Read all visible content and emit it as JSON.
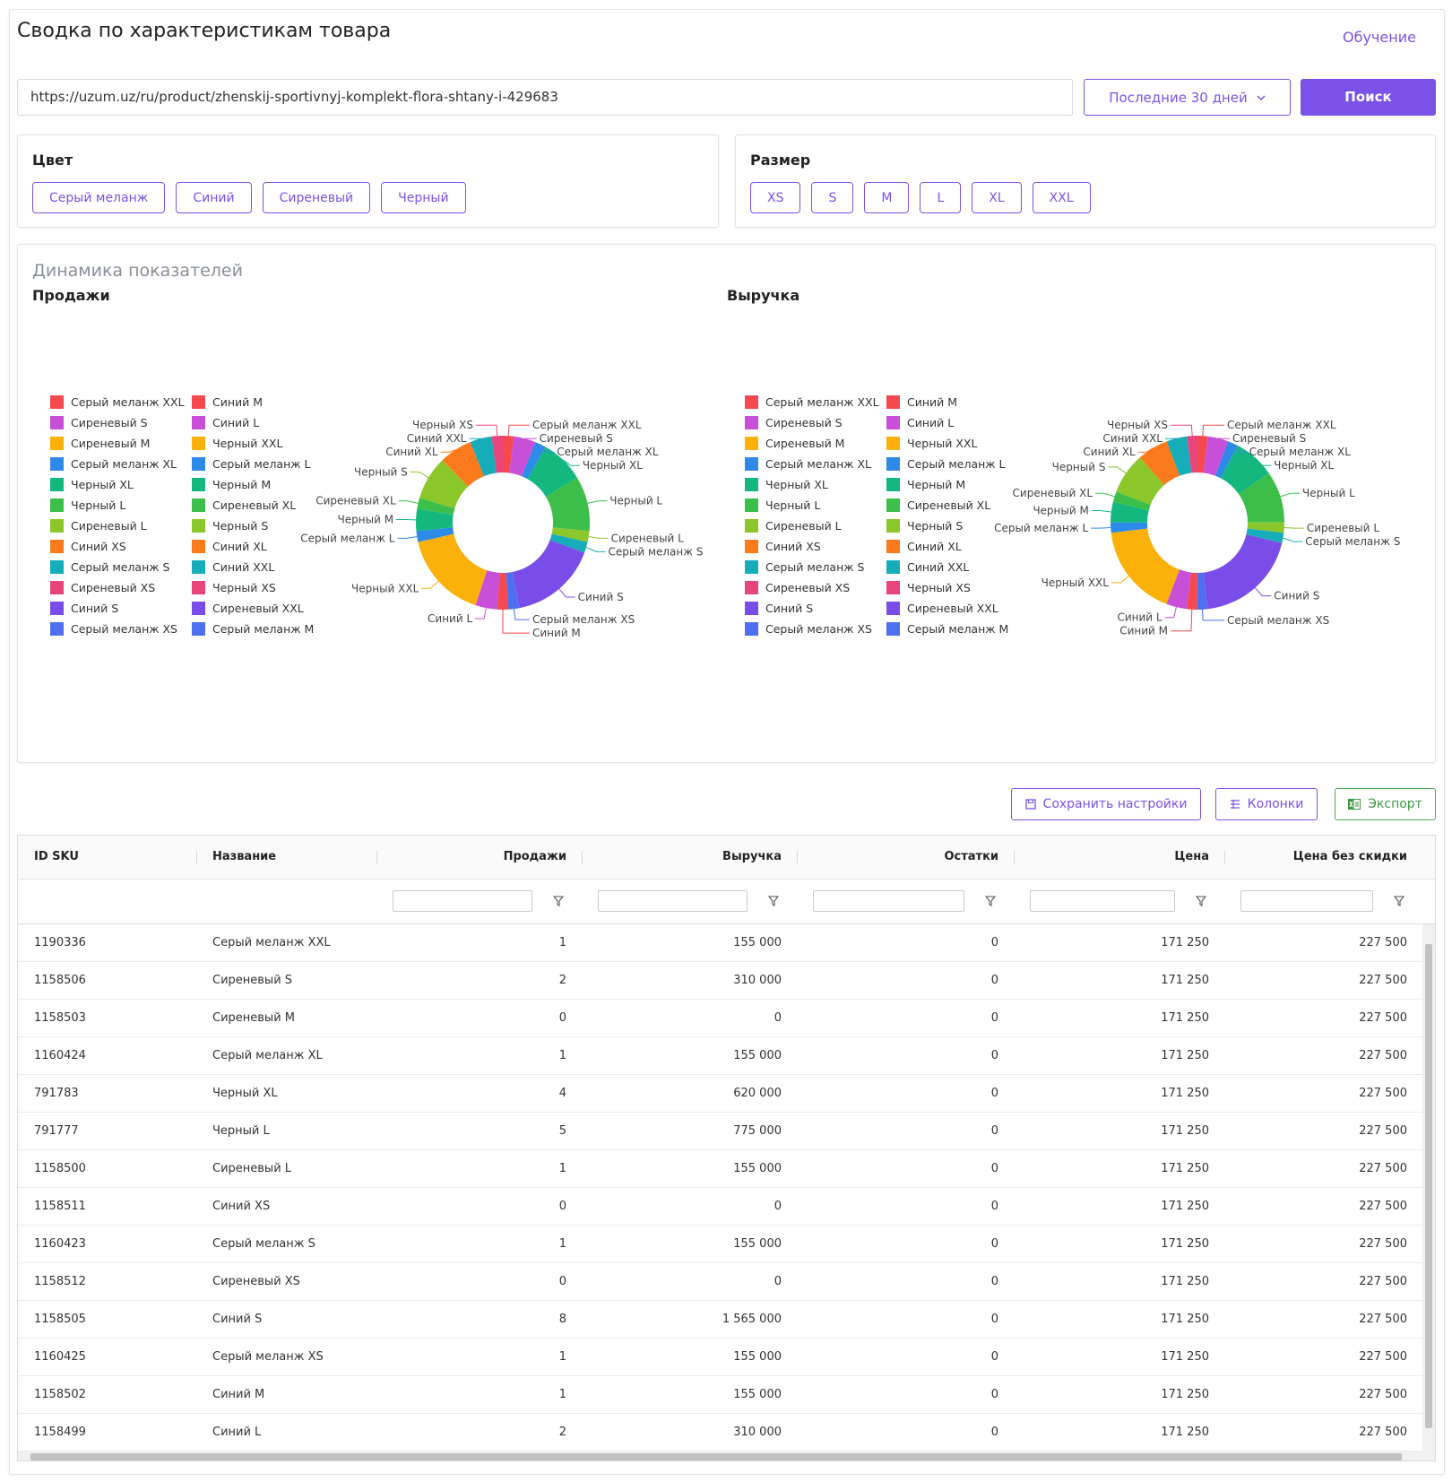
{
  "header": {
    "title": "Сводка по характеристикам товара",
    "help_link": "Обучение"
  },
  "search": {
    "url": "https://uzum.uz/ru/product/zhenskij-sportivnyj-komplekt-flora-shtany-i-429683",
    "period": "Последние 30 дней",
    "button": "Поиск"
  },
  "filters": [
    {
      "title": "Цвет",
      "options": [
        "Серый меланж",
        "Синий",
        "Сиреневый",
        "Черный"
      ]
    },
    {
      "title": "Размер",
      "options": [
        "XS",
        "S",
        "M",
        "L",
        "XL",
        "XXL"
      ]
    }
  ],
  "dashboard": {
    "title": "Динамика показателей"
  },
  "chart_data": [
    {
      "type": "donut",
      "title": "Продажи",
      "categories": [
        "Серый меланж XXL",
        "Сиреневый S",
        "Сиреневый M",
        "Серый меланж XL",
        "Черный XL",
        "Черный L",
        "Сиреневый L",
        "Синий XS",
        "Серый меланж S",
        "Сиреневый XS",
        "Синий S",
        "Серый меланж XS",
        "Синий M",
        "Синий L",
        "Черный XXL",
        "Серый меланж L",
        "Черный M",
        "Сиреневый XL",
        "Черный S",
        "Синий XL",
        "Синий XXL",
        "Черный XS",
        "Сиреневый XXL",
        "Серый меланж M"
      ],
      "values": [
        1,
        2,
        0,
        1,
        4,
        5,
        1,
        0,
        1,
        0,
        8,
        1,
        1,
        2,
        8,
        1,
        2,
        1,
        4,
        3,
        2,
        1,
        0,
        0
      ],
      "colors": [
        "#f5484f",
        "#c84fd8",
        "#fbb10a",
        "#2d8ae8",
        "#14b87e",
        "#3cbf4a",
        "#8bc72a",
        "#fb7a1c",
        "#17adb8",
        "#e8467a",
        "#7b4de8",
        "#4d6ff0"
      ]
    },
    {
      "type": "donut",
      "title": "Выручка",
      "categories": [
        "Серый меланж XXL",
        "Сиреневый S",
        "Сиреневый M",
        "Серый меланж XL",
        "Черный XL",
        "Черный L",
        "Сиреневый L",
        "Синий XS",
        "Серый меланж S",
        "Сиреневый XS",
        "Синий S",
        "Серый меланж XS",
        "Синий M",
        "Синий L",
        "Черный XXL",
        "Серый меланж L",
        "Черный M",
        "Сиреневый XL",
        "Черный S",
        "Синий XL",
        "Синий XXL",
        "Черный XS",
        "Сиреневый XXL",
        "Серый меланж M"
      ],
      "values": [
        155000,
        310000,
        0,
        155000,
        620000,
        775000,
        155000,
        0,
        155000,
        0,
        1565000,
        155000,
        155000,
        310000,
        1400000,
        155000,
        310000,
        155000,
        620000,
        465000,
        310000,
        155000,
        0,
        0
      ],
      "colors": [
        "#f5484f",
        "#c84fd8",
        "#fbb10a",
        "#2d8ae8",
        "#14b87e",
        "#3cbf4a",
        "#8bc72a",
        "#fb7a1c",
        "#17adb8",
        "#e8467a",
        "#7b4de8",
        "#4d6ff0"
      ]
    }
  ],
  "toolbar": {
    "buttons": [
      "Сохранить настройки",
      "Колонки",
      "Экспорт"
    ]
  },
  "table": {
    "columns": [
      "ID SKU",
      "Название",
      "Продажи",
      "Выручка",
      "Остатки",
      "Цена",
      "Цена без скидки"
    ],
    "rows": [
      [
        "1190336",
        "Серый меланж XXL",
        "1",
        "155 000",
        "0",
        "171 250",
        "227 500"
      ],
      [
        "1158506",
        "Сиреневый S",
        "2",
        "310 000",
        "0",
        "171 250",
        "227 500"
      ],
      [
        "1158503",
        "Сиреневый M",
        "0",
        "0",
        "0",
        "171 250",
        "227 500"
      ],
      [
        "1160424",
        "Серый меланж XL",
        "1",
        "155 000",
        "0",
        "171 250",
        "227 500"
      ],
      [
        "791783",
        "Черный XL",
        "4",
        "620 000",
        "0",
        "171 250",
        "227 500"
      ],
      [
        "791777",
        "Черный L",
        "5",
        "775 000",
        "0",
        "171 250",
        "227 500"
      ],
      [
        "1158500",
        "Сиреневый L",
        "1",
        "155 000",
        "0",
        "171 250",
        "227 500"
      ],
      [
        "1158511",
        "Синий XS",
        "0",
        "0",
        "0",
        "171 250",
        "227 500"
      ],
      [
        "1160423",
        "Серый меланж S",
        "1",
        "155 000",
        "0",
        "171 250",
        "227 500"
      ],
      [
        "1158512",
        "Сиреневый XS",
        "0",
        "0",
        "0",
        "171 250",
        "227 500"
      ],
      [
        "1158505",
        "Синий S",
        "8",
        "1 565 000",
        "0",
        "171 250",
        "227 500"
      ],
      [
        "1160425",
        "Серый меланж XS",
        "1",
        "155 000",
        "0",
        "171 250",
        "227 500"
      ],
      [
        "1158502",
        "Синий M",
        "1",
        "155 000",
        "0",
        "171 250",
        "227 500"
      ],
      [
        "1158499",
        "Синий L",
        "2",
        "310 000",
        "0",
        "171 250",
        "227 500"
      ]
    ]
  }
}
